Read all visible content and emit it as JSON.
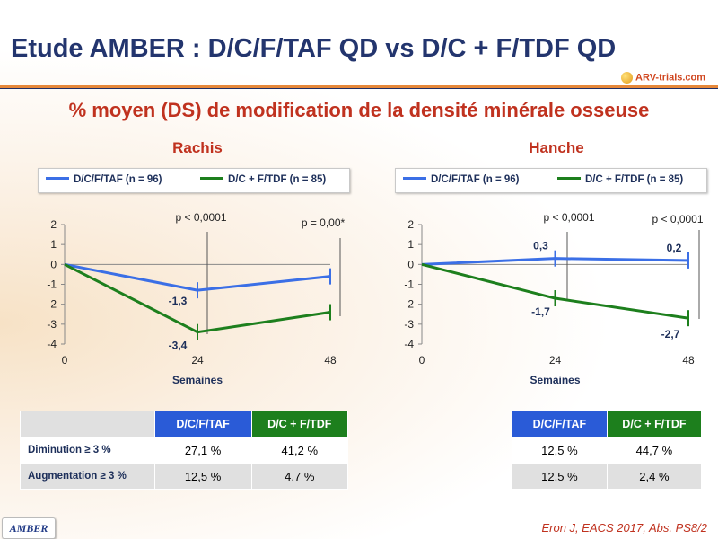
{
  "title": "Etude AMBER : D/C/F/TAF QD vs D/C + F/TDF QD",
  "logo_text": "ARV-trials.com",
  "subtitle": "% moyen (DS) de modification de la densité minérale osseuse",
  "badge": "AMBER",
  "citation": "Eron J, EACS 2017, Abs. PS8/2",
  "colors": {
    "taf": "#3b6fe6",
    "tdf": "#1d7f1d",
    "title": "#23356e",
    "accent": "#c0321f"
  },
  "legend": {
    "taf": "D/C/F/TAF (n = 96)",
    "tdf": "D/C + F/TDF (n = 85)"
  },
  "chart_data": [
    {
      "type": "line",
      "title": "Rachis",
      "xlabel": "Semaines",
      "ylabel": "",
      "x": [
        0,
        24,
        48
      ],
      "xticks": [
        "0",
        "24",
        "48"
      ],
      "ylim": [
        -4,
        2
      ],
      "yticks": [
        "2",
        "1",
        "0",
        "-1",
        "-2",
        "-3",
        "-4"
      ],
      "series": [
        {
          "name": "D/C/F/TAF (n = 96)",
          "values": [
            0,
            -1.3,
            -0.6
          ],
          "labels": [
            "",
            "-1,3",
            ""
          ]
        },
        {
          "name": "D/C + F/TDF (n = 85)",
          "values": [
            0,
            -3.4,
            -2.4
          ],
          "labels": [
            "",
            "-3,4",
            ""
          ]
        }
      ],
      "pvalues": [
        "p < 0,0001",
        "p = 0,00*"
      ]
    },
    {
      "type": "line",
      "title": "Hanche",
      "xlabel": "Semaines",
      "ylabel": "",
      "x": [
        0,
        24,
        48
      ],
      "xticks": [
        "0",
        "24",
        "48"
      ],
      "ylim": [
        -4,
        2
      ],
      "yticks": [
        "2",
        "1",
        "0",
        "-1",
        "-2",
        "-3",
        "-4"
      ],
      "series": [
        {
          "name": "D/C/F/TAF (n = 96)",
          "values": [
            0,
            0.3,
            0.2
          ],
          "labels": [
            "",
            "0,3",
            "0,2"
          ]
        },
        {
          "name": "D/C + F/TDF (n = 85)",
          "values": [
            0,
            -1.7,
            -2.7
          ],
          "labels": [
            "",
            "-1,7",
            "-2,7"
          ]
        }
      ],
      "pvalues": [
        "p < 0,0001",
        "p < 0,0001"
      ]
    }
  ],
  "tables": {
    "rachis": {
      "headers": [
        "D/C/F/TAF",
        "D/C + F/TDF"
      ],
      "rows": [
        {
          "label": "Diminution ≥ 3 %",
          "taf": "27,1 %",
          "tdf": "41,2 %"
        },
        {
          "label": "Augmentation ≥ 3 %",
          "taf": "12,5 %",
          "tdf": "4,7 %"
        }
      ]
    },
    "hanche": {
      "headers": [
        "D/C/F/TAF",
        "D/C + F/TDF"
      ],
      "rows": [
        {
          "taf": "12,5 %",
          "tdf": "44,7 %"
        },
        {
          "taf": "12,5 %",
          "tdf": "2,4 %"
        }
      ]
    }
  }
}
